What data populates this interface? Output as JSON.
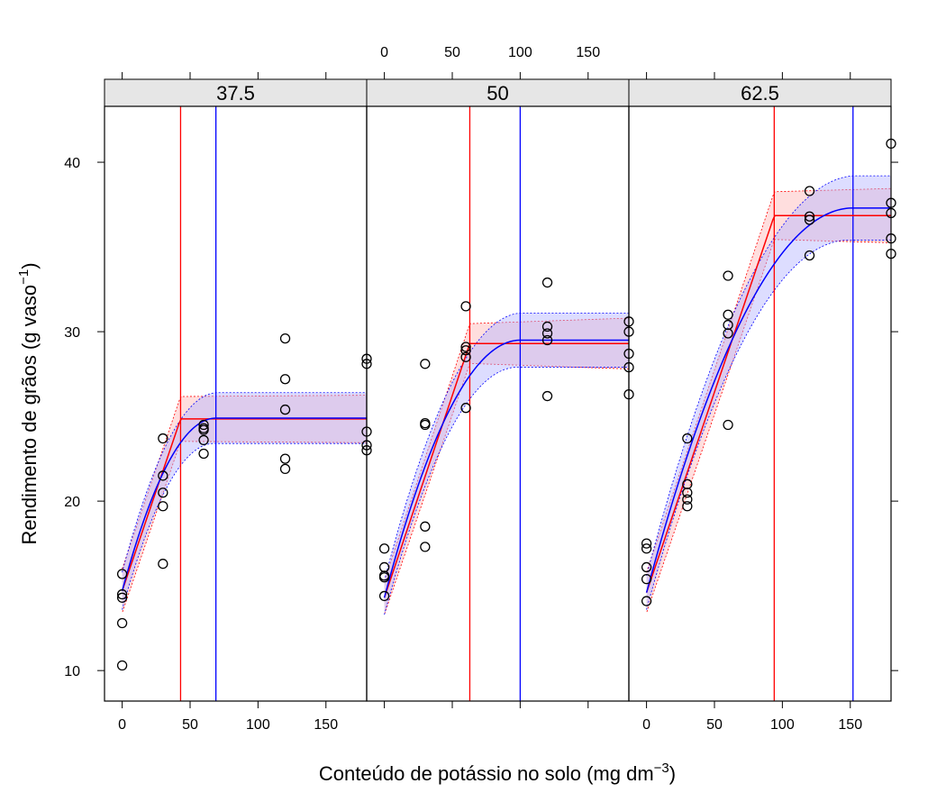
{
  "chart_data": {
    "type": "scatter",
    "xlabel": "Conteúdo de potássio no solo (mg dm",
    "xlabel_sup": "−3",
    "xlabel_end": ")",
    "ylabel": "Rendimento de grãos (g vaso",
    "ylabel_sup": "−1",
    "ylabel_end": ")",
    "xlim": [
      -13,
      180
    ],
    "ylim": [
      8.2,
      43.3
    ],
    "x_ticks": [
      0,
      50,
      100,
      150
    ],
    "y_ticks": [
      10,
      20,
      30,
      40
    ],
    "tick_labels": {
      "x": [
        "0",
        "50",
        "100",
        "150"
      ],
      "y": [
        "10",
        "20",
        "30",
        "40"
      ]
    },
    "colors": {
      "points": "#000000",
      "model_a": "#ff0000",
      "model_b": "#0000ff",
      "band_a": "#ffb6b6",
      "band_b": "#b3b3ff",
      "strip": "#e6e6e6"
    },
    "panels": [
      {
        "label": "37.5",
        "xticks_position": "bottom",
        "points": [
          [
            0,
            15.7
          ],
          [
            0,
            14.5
          ],
          [
            0,
            14.3
          ],
          [
            0,
            12.8
          ],
          [
            0,
            10.3
          ],
          [
            30,
            23.7
          ],
          [
            30,
            21.5
          ],
          [
            30,
            20.5
          ],
          [
            30,
            19.7
          ],
          [
            30,
            16.3
          ],
          [
            60,
            24.5
          ],
          [
            60,
            24.3
          ],
          [
            60,
            24.2
          ],
          [
            60,
            23.6
          ],
          [
            60,
            22.8
          ],
          [
            120,
            29.6
          ],
          [
            120,
            27.2
          ],
          [
            120,
            25.4
          ],
          [
            120,
            22.5
          ],
          [
            120,
            21.9
          ],
          [
            180,
            28.4
          ],
          [
            180,
            28.1
          ],
          [
            180,
            24.1
          ],
          [
            180,
            23.3
          ],
          [
            180,
            23.0
          ]
        ],
        "model_a": {
          "intercept": 14.7,
          "slope": 0.236,
          "break": 43,
          "plateau": 24.85
        },
        "model_b": {
          "intercept": 14.7,
          "plateau": 24.9,
          "vertex": 69
        },
        "band_a_halfwidth": [
          1.3,
          1.4
        ],
        "band_b_halfwidth": [
          1.1,
          1.5
        ]
      },
      {
        "label": "50",
        "xticks_position": "top",
        "points": [
          [
            0,
            17.2
          ],
          [
            0,
            16.1
          ],
          [
            0,
            15.6
          ],
          [
            0,
            15.5
          ],
          [
            0,
            14.4
          ],
          [
            30,
            28.1
          ],
          [
            30,
            24.6
          ],
          [
            30,
            24.5
          ],
          [
            30,
            18.5
          ],
          [
            30,
            17.3
          ],
          [
            60,
            31.5
          ],
          [
            60,
            29.1
          ],
          [
            60,
            28.9
          ],
          [
            60,
            28.5
          ],
          [
            60,
            25.5
          ],
          [
            120,
            32.9
          ],
          [
            120,
            30.3
          ],
          [
            120,
            29.9
          ],
          [
            120,
            29.5
          ],
          [
            120,
            26.2
          ],
          [
            180,
            30.6
          ],
          [
            180,
            30.0
          ],
          [
            180,
            28.7
          ],
          [
            180,
            27.9
          ],
          [
            180,
            26.3
          ]
        ],
        "model_a": {
          "intercept": 14.3,
          "slope": 0.2386,
          "break": 62.9,
          "plateau": 29.3
        },
        "model_b": {
          "intercept": 14.3,
          "plateau": 29.5,
          "vertex": 100
        },
        "band_a_halfwidth": [
          1.0,
          1.5
        ],
        "band_b_halfwidth": [
          1.0,
          1.6
        ]
      },
      {
        "label": "62.5",
        "xticks_position": "bottom",
        "points": [
          [
            0,
            17.5
          ],
          [
            0,
            17.2
          ],
          [
            0,
            16.1
          ],
          [
            0,
            15.4
          ],
          [
            0,
            14.1
          ],
          [
            30,
            23.7
          ],
          [
            30,
            21.0
          ],
          [
            30,
            20.5
          ],
          [
            30,
            20.1
          ],
          [
            30,
            19.7
          ],
          [
            60,
            33.3
          ],
          [
            60,
            31.0
          ],
          [
            60,
            30.4
          ],
          [
            60,
            29.9
          ],
          [
            60,
            24.5
          ],
          [
            120,
            38.3
          ],
          [
            120,
            36.8
          ],
          [
            120,
            36.6
          ],
          [
            120,
            34.5
          ],
          [
            180,
            41.1
          ],
          [
            180,
            37.6
          ],
          [
            180,
            37.0
          ],
          [
            180,
            35.5
          ],
          [
            180,
            34.6
          ]
        ],
        "model_a": {
          "intercept": 14.6,
          "slope": 0.2366,
          "break": 94,
          "plateau": 36.85
        },
        "model_b": {
          "intercept": 14.6,
          "plateau": 37.3,
          "vertex": 152
        },
        "band_a_halfwidth": [
          1.2,
          1.6
        ],
        "band_b_halfwidth": [
          1.0,
          1.9
        ]
      }
    ]
  }
}
